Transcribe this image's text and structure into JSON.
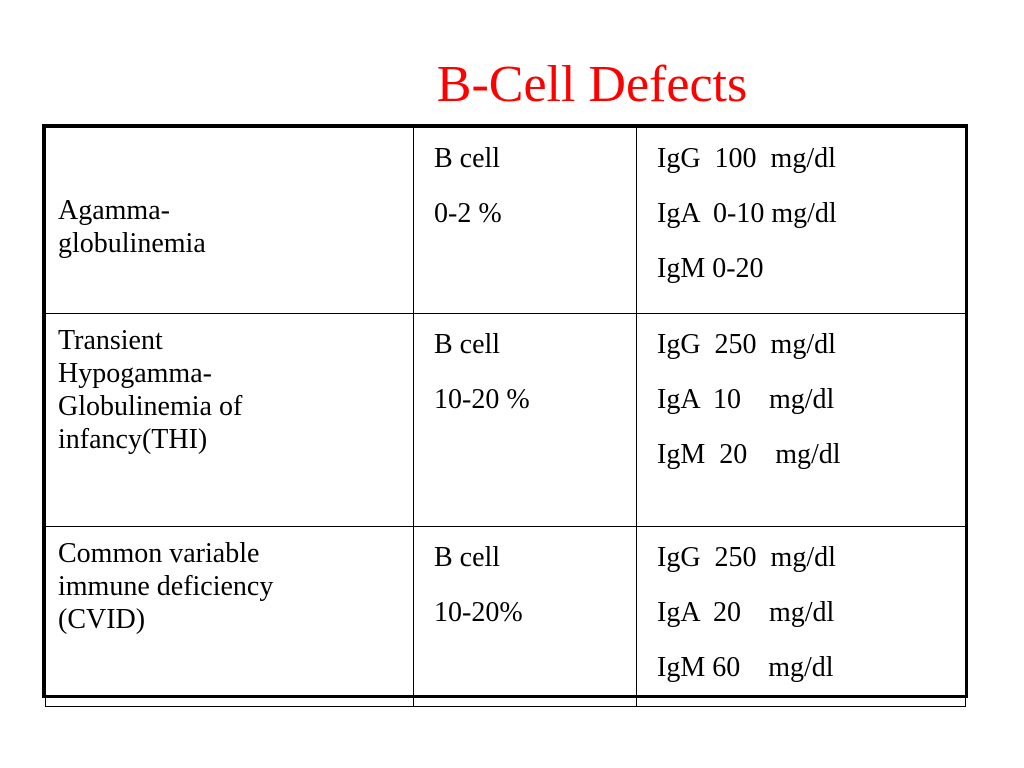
{
  "title": "B-Cell Defects",
  "title_color": "#ff0000",
  "rows": [
    {
      "disease_lines": [
        "Agamma-",
        "globulinemia"
      ],
      "bcell_label": "B cell",
      "bcell_value": "0-2 %",
      "ig_lines": [
        "IgG  100  mg/dl",
        "IgA  0-10 mg/dl",
        "IgM 0-20"
      ]
    },
    {
      "disease_lines": [
        "Transient",
        "Hypogamma-",
        "Globulinemia of",
        "infancy(THI)"
      ],
      "bcell_label": "B cell",
      "bcell_value": "10-20 %",
      "ig_lines": [
        "IgG  250  mg/dl",
        "IgA  10    mg/dl",
        "IgM  20    mg/dl"
      ]
    },
    {
      "disease_lines": [
        "Common variable",
        "immune deficiency",
        "(CVID)"
      ],
      "bcell_label": "B cell",
      "bcell_value": "10-20%",
      "ig_lines": [
        "IgG  250  mg/dl",
        "IgA  20    mg/dl",
        "IgM 60    mg/dl"
      ]
    }
  ]
}
